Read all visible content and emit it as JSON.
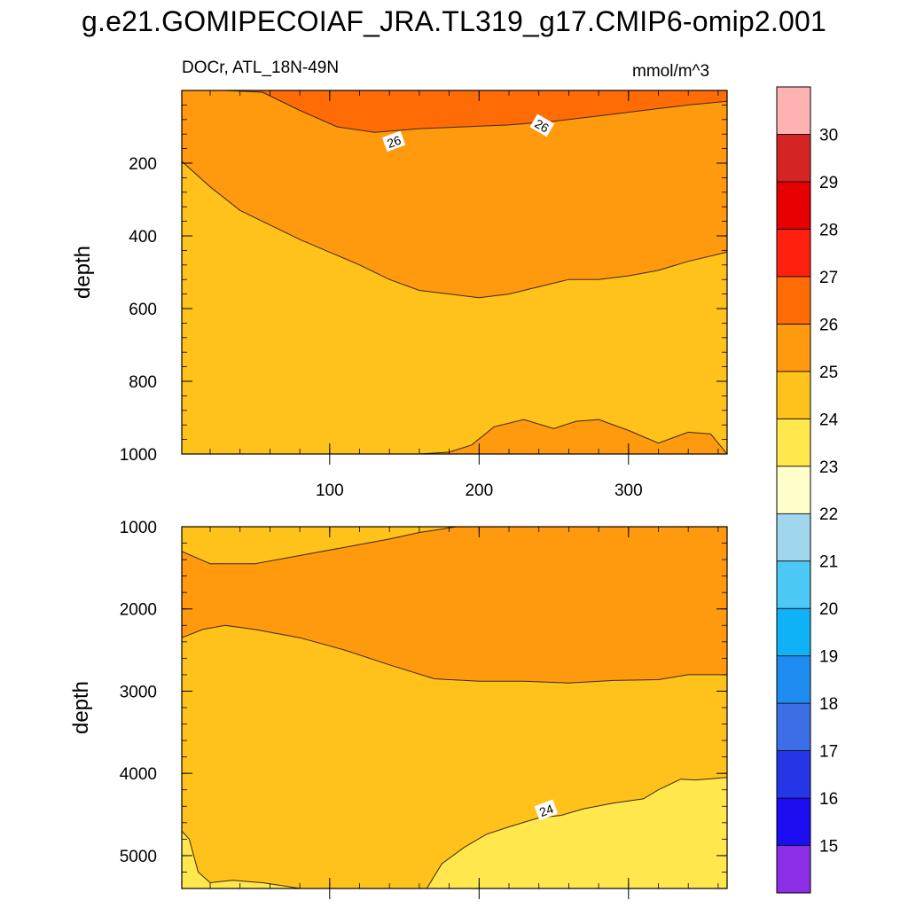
{
  "title": "g.e21.GOMIPECOIAF_JRA.TL319_g17.CMIP6-omip2.001",
  "subtitle_left": "DOCr, ATL_18N-49N",
  "subtitle_right": "mmol/m^3",
  "chart_data": {
    "type": "contour",
    "variable": "DOCr",
    "region": "ATL_18N-49N",
    "units": "mmol/m^3",
    "xlim": [
      1,
      366
    ],
    "x_tick_labels": [
      "100",
      "200",
      "300"
    ],
    "x_ticks": [
      100,
      200,
      300
    ],
    "colorbar": {
      "levels": [
        15,
        16,
        17,
        18,
        19,
        20,
        21,
        22,
        23,
        24,
        25,
        26,
        27,
        28,
        29,
        30
      ],
      "colors": [
        "#8c2ee6",
        "#1f0df2",
        "#2636e6",
        "#3d6ee6",
        "#1f8cf2",
        "#0fb2f7",
        "#4cc8f5",
        "#a1d7ed",
        "#ffffcc",
        "#ffe74d",
        "#ffc21a",
        "#ff990d",
        "#ff6c05",
        "#ff200d",
        "#e60000",
        "#d42424",
        "#ffb2b2"
      ]
    },
    "panels": [
      {
        "name": "upper",
        "ylabel": "depth",
        "ylim": [
          0,
          1000
        ],
        "y_ticks": [
          200,
          400,
          600,
          800,
          1000
        ],
        "y_tick_labels": [
          "200",
          "400",
          "600",
          "800",
          "1000"
        ],
        "contour_labels": [
          {
            "text": "26",
            "x": 143,
            "y": 141
          },
          {
            "text": "26",
            "x": 242,
            "y": 97
          }
        ],
        "fill_bands": [
          {
            "level": "24-25",
            "color": "#ffc21a"
          },
          {
            "level": "25-26",
            "color": "#ff990d"
          },
          {
            "level": "26-27",
            "color": "#ff6c05"
          }
        ],
        "contours": [
          {
            "level": 26,
            "x": [
              1,
              30,
              55,
              80,
              105,
              130,
              160,
              190,
              220,
              250,
              280,
              310,
              340,
              366
            ],
            "y": [
              0,
              0,
              5,
              55,
              100,
              115,
              105,
              100,
              95,
              85,
              70,
              55,
              40,
              30
            ]
          },
          {
            "level": 25,
            "x": [
              1,
              20,
              40,
              60,
              80,
              100,
              120,
              140,
              160,
              180,
              200,
              220,
              240,
              260,
              280,
              300,
              320,
              340,
              366
            ],
            "y": [
              195,
              265,
              330,
              370,
              410,
              445,
              480,
              520,
              550,
              560,
              570,
              560,
              540,
              520,
              520,
              510,
              495,
              470,
              445
            ]
          },
          {
            "level": 25,
            "x": [
              160,
              180,
              195,
              210,
              230,
              250,
              265,
              280,
              300,
              320,
              340,
              355,
              366
            ],
            "y": [
              1000,
              995,
              975,
              925,
              905,
              930,
              910,
              905,
              935,
              970,
              940,
              945,
              1000
            ]
          }
        ]
      },
      {
        "name": "lower",
        "ylabel": "depth",
        "ylim": [
          1000,
          5400
        ],
        "y_ticks": [
          1000,
          2000,
          3000,
          4000,
          5000
        ],
        "y_tick_labels": [
          "1000",
          "2000",
          "3000",
          "4000",
          "5000"
        ],
        "contour_labels": [
          {
            "text": "24",
            "x": 245,
            "y": 4450
          }
        ],
        "fill_bands": [
          {
            "level": "23-24",
            "color": "#ffe74d"
          },
          {
            "level": "24-25",
            "color": "#ffc21a"
          },
          {
            "level": "25-26",
            "color": "#ff990d"
          }
        ],
        "contours": [
          {
            "level": 25,
            "x": [
              1,
              20,
              50,
              80,
              110,
              140,
              160,
              175,
              185
            ],
            "y": [
              1300,
              1450,
              1450,
              1350,
              1250,
              1150,
              1070,
              1030,
              1000
            ]
          },
          {
            "level": 25,
            "x": [
              1,
              15,
              30,
              50,
              80,
              110,
              140,
              170,
              200,
              230,
              260,
              290,
              320,
              340,
              366
            ],
            "y": [
              2350,
              2250,
              2200,
              2250,
              2350,
              2500,
              2680,
              2850,
              2880,
              2880,
              2900,
              2870,
              2860,
              2800,
              2800
            ]
          },
          {
            "level": 24,
            "x": [
              165,
              175,
              190,
              205,
              220,
              240,
              255,
              270,
              290,
              310,
              320,
              335,
              345,
              366
            ],
            "y": [
              5400,
              5100,
              4900,
              4740,
              4650,
              4540,
              4510,
              4430,
              4360,
              4310,
              4200,
              4070,
              4080,
              4050
            ]
          },
          {
            "level": 24,
            "x": [
              1,
              6,
              12,
              20,
              35,
              55,
              70,
              80
            ],
            "y": [
              4700,
              4800,
              5200,
              5330,
              5300,
              5330,
              5370,
              5400
            ]
          }
        ]
      }
    ]
  }
}
